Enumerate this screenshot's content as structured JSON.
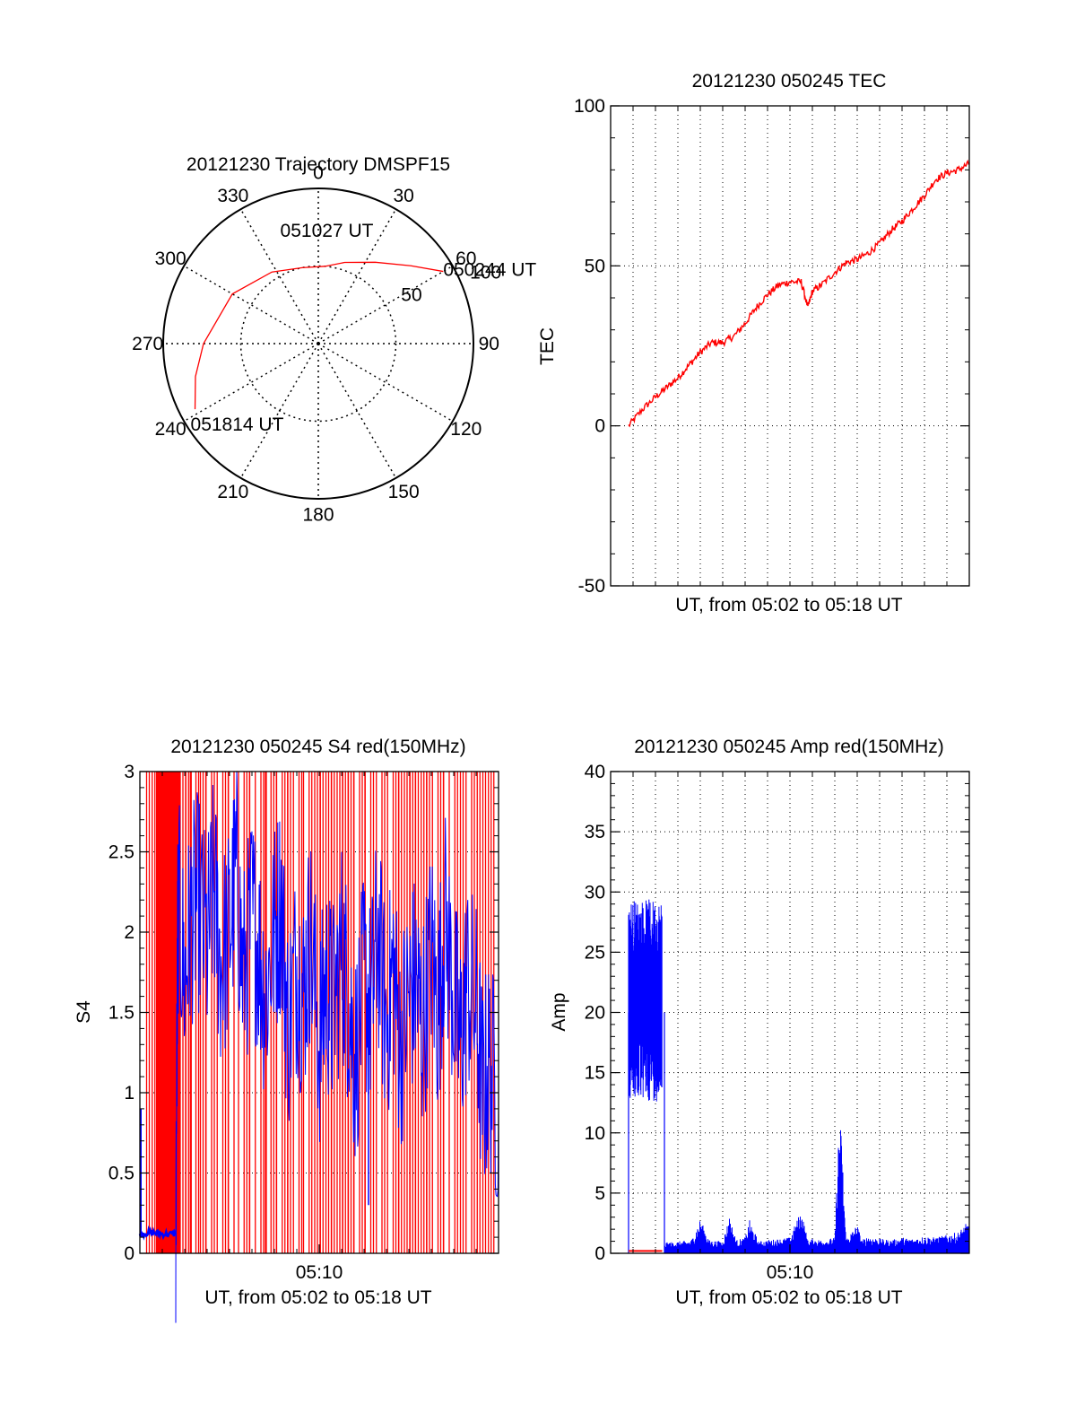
{
  "colors": {
    "red": "#ff0000",
    "blue": "#0000ff",
    "axis": "#000000",
    "grid": "#000000"
  },
  "chart_data": [
    {
      "id": "trajectory",
      "type": "polar",
      "title": "20121230 Trajectory DMSPF15",
      "azimuth_labels": [
        "0",
        "30",
        "60",
        "90",
        "120",
        "150",
        "180",
        "210",
        "240",
        "270",
        "300",
        "330"
      ],
      "radial_labels": [
        {
          "r": 50,
          "label": "50"
        },
        {
          "r": 100,
          "label": "100"
        }
      ],
      "rlim": [
        0,
        100
      ],
      "points": [
        {
          "az": 60,
          "r": 93,
          "label": "050244 UT"
        },
        {
          "az": 5,
          "r": 50,
          "label": "051027 UT"
        },
        {
          "az": 242,
          "r": 90,
          "label": "051814 UT"
        }
      ],
      "track": [
        {
          "az": 60,
          "r": 93
        },
        {
          "az": 50,
          "r": 78
        },
        {
          "az": 35,
          "r": 64
        },
        {
          "az": 18,
          "r": 55
        },
        {
          "az": 5,
          "r": 50
        },
        {
          "az": -12,
          "r": 50
        },
        {
          "az": -33,
          "r": 55
        },
        {
          "az": -60,
          "r": 64
        },
        {
          "az": -90,
          "r": 74
        },
        {
          "az": -105,
          "r": 82
        },
        {
          "az": -118,
          "r": 90
        }
      ],
      "track_color": "#ff0000"
    },
    {
      "id": "tec",
      "type": "line",
      "title": "20121230 050245 TEC",
      "xlabel": "UT, from 05:02 to 05:18 UT",
      "ylabel": "TEC",
      "xlim": [
        0,
        16
      ],
      "ylim": [
        -50,
        100
      ],
      "yticks": [
        -50,
        0,
        50,
        100
      ],
      "series": [
        {
          "color": "#ff0000",
          "x": [
            0.8,
            1.4,
            2,
            2.5,
            3,
            3.5,
            4,
            4.5,
            5,
            5.5,
            6,
            6.5,
            7,
            7.5,
            8,
            8.5,
            8.8,
            9,
            9.4,
            10,
            10.5,
            11,
            11.5,
            12,
            12.5,
            13,
            13.5,
            14,
            14.5,
            15,
            15.5,
            16
          ],
          "y": [
            0,
            5,
            9,
            12,
            15,
            19,
            23,
            26,
            26,
            28,
            32,
            37,
            41,
            44,
            45,
            45,
            37,
            42,
            44,
            48,
            51,
            52,
            54,
            57,
            61,
            64,
            68,
            72,
            77,
            79,
            80,
            82
          ]
        }
      ]
    },
    {
      "id": "s4",
      "type": "line",
      "title": "20121230 050245 S4 red(150MHz)",
      "xlabel": "UT, from 05:02 to 05:18 UT",
      "ylabel": "S4",
      "xlim": [
        0,
        16
      ],
      "ylim": [
        0,
        3
      ],
      "yticks": [
        0,
        0.5,
        1,
        1.5,
        2,
        2.5,
        3
      ],
      "xticks": [
        {
          "x": 8,
          "label": "05:10"
        }
      ],
      "red_spikes_x": [
        0.3,
        0.55,
        0.9,
        1.1,
        1.55,
        1.8,
        2.05,
        2.25,
        2.5,
        2.7,
        2.95,
        3.2,
        3.45,
        3.7,
        3.95,
        4.2,
        4.4,
        4.65,
        4.9,
        5.15,
        5.4,
        5.6,
        5.85,
        6.1,
        6.35,
        6.6,
        6.85,
        7.1,
        7.3,
        7.55,
        7.8,
        8.05,
        8.3,
        8.55,
        8.8,
        9.05,
        9.3,
        9.55,
        9.8,
        10.05,
        10.3,
        10.55,
        10.8,
        11.05,
        11.3,
        11.55,
        11.8,
        12.05,
        12.3,
        12.55,
        12.8,
        13.05,
        13.3,
        13.55,
        13.8,
        14.05,
        14.3,
        14.55,
        14.8,
        15.05,
        15.3,
        15.55
      ],
      "red_bands": [
        [
          0,
          1.8
        ],
        [
          4.0,
          4.5
        ],
        [
          9.0,
          9.4
        ]
      ],
      "series": [
        {
          "color": "#0000ff",
          "x": [
            0,
            0.5,
            1,
            1.6,
            1.7,
            2,
            2.3,
            2.6,
            3,
            3.3,
            3.6,
            4,
            4.3,
            4.6,
            5,
            5.3,
            5.6,
            6,
            6.3,
            6.6,
            7,
            7.3,
            7.6,
            8,
            8.3,
            8.6,
            9,
            9.3,
            9.6,
            10,
            10.3,
            10.6,
            11,
            11.3,
            11.6,
            12,
            12.3,
            12.6,
            13,
            13.3,
            13.6,
            14,
            14.3,
            14.6,
            15,
            15.3,
            15.6,
            16
          ],
          "y": [
            0.12,
            0.13,
            0.12,
            0.12,
            2.2,
            1.7,
            2.1,
            2.2,
            1.9,
            2.3,
            1.8,
            2.0,
            2.4,
            1.7,
            2.1,
            1.9,
            1.6,
            2.0,
            2.2,
            1.4,
            1.8,
            1.6,
            2.0,
            1.3,
            1.7,
            1.5,
            1.9,
            1.6,
            1.2,
            1.7,
            1.5,
            2.0,
            1.4,
            1.8,
            1.3,
            1.6,
            1.7,
            1.4,
            1.9,
            1.5,
            2.1,
            1.6,
            1.3,
            1.7,
            1.5,
            1.0,
            1.2,
            0.9
          ]
        }
      ]
    },
    {
      "id": "amp",
      "type": "line",
      "title": "20121230 050245 Amp red(150MHz)",
      "xlabel": "UT, from 05:02 to 05:18 UT",
      "ylabel": "Amp",
      "xlim": [
        0,
        16
      ],
      "ylim": [
        0,
        40
      ],
      "yticks": [
        0,
        5,
        10,
        15,
        20,
        25,
        30,
        35,
        40
      ],
      "xticks": [
        {
          "x": 8,
          "label": "05:10"
        }
      ],
      "burst": {
        "x0": 0.8,
        "x1": 2.3,
        "mean": 21,
        "spread": 7
      },
      "series": [
        {
          "color": "#0000ff",
          "x": [
            2.4,
            3,
            3.6,
            4,
            4.4,
            5,
            5.3,
            5.6,
            6,
            6.2,
            6.6,
            7,
            7.5,
            8,
            8.5,
            8.8,
            9,
            9.5,
            10,
            10.2,
            10.3,
            10.5,
            11,
            11.2,
            11.5,
            12,
            12.5,
            13,
            13.5,
            14,
            14.5,
            15,
            15.5,
            16
          ],
          "y": [
            0.8,
            0.9,
            1.0,
            2.6,
            1.0,
            0.9,
            2.8,
            1.0,
            1.2,
            2.5,
            0.9,
            1.0,
            1.1,
            1.2,
            3.3,
            1.0,
            1.1,
            1.0,
            1.2,
            10.5,
            9,
            1.1,
            2.2,
            1.0,
            1.3,
            1.1,
            1.0,
            1.2,
            1.1,
            1.3,
            1.2,
            1.4,
            1.6,
            2.5
          ]
        }
      ]
    }
  ]
}
